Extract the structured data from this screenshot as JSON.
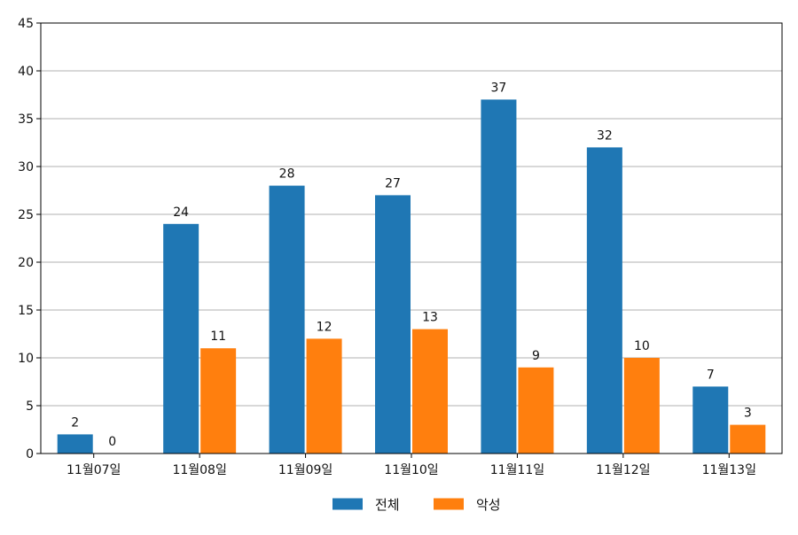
{
  "chart_data": {
    "type": "bar",
    "categories": [
      "11월07일",
      "11월08일",
      "11월09일",
      "11월10일",
      "11월11일",
      "11월12일",
      "11월13일"
    ],
    "series": [
      {
        "name": "전체",
        "values": [
          2,
          24,
          28,
          27,
          37,
          32,
          7
        ],
        "color": "#1f77b4"
      },
      {
        "name": "악성",
        "values": [
          0,
          11,
          12,
          13,
          9,
          10,
          3
        ],
        "color": "#ff7f0e"
      }
    ],
    "ylim": [
      0,
      45
    ],
    "yticks": [
      0,
      5,
      10,
      15,
      20,
      25,
      30,
      35,
      40,
      45
    ],
    "grid": true,
    "legend_position": "bottom-center",
    "show_data_labels": true
  }
}
